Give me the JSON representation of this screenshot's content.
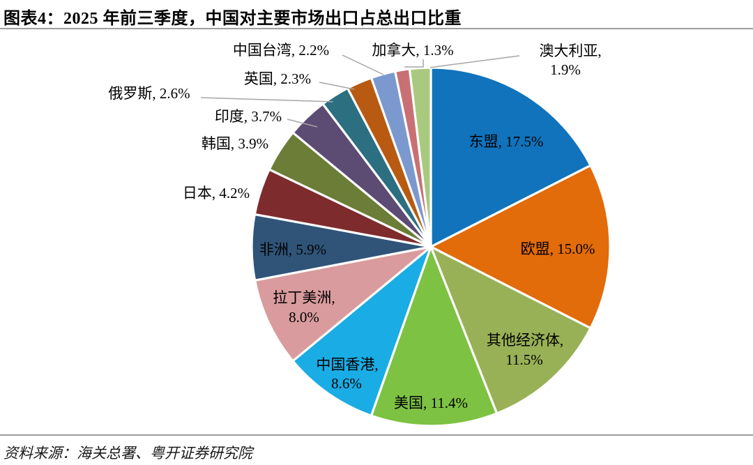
{
  "header": {
    "title": "图表4：2025 年前三季度，中国对主要市场出口占总出口比重"
  },
  "footer": {
    "source": "资料来源：海关总署、粤开证券研究院"
  },
  "colors": {
    "background": "#FFFFFF",
    "divider": "#9E9E9E",
    "leader_line": "#A6A6A6",
    "label_text": "#000000",
    "slice_border": "#FFFFFF"
  },
  "chart_data": {
    "type": "pie",
    "title": "图表4：2025 年前三季度，中国对主要市场出口占总出口比重",
    "unit": "%",
    "start_angle": "12-oclock",
    "direction": "clockwise",
    "legend_position": "none",
    "slices": [
      {
        "label": "东盟",
        "value": 17.5,
        "color": "#1073BC"
      },
      {
        "label": "欧盟",
        "value": 15.0,
        "color": "#E26B0A"
      },
      {
        "label": "其他经济体",
        "value": 11.5,
        "color": "#98B156"
      },
      {
        "label": "美国",
        "value": 11.4,
        "color": "#7DC242"
      },
      {
        "label": "中国香港",
        "value": 8.6,
        "color": "#1AACE4"
      },
      {
        "label": "拉丁美洲",
        "value": 8.0,
        "color": "#D99B9D"
      },
      {
        "label": "非洲",
        "value": 5.9,
        "color": "#2F5478"
      },
      {
        "label": "日本",
        "value": 4.2,
        "color": "#7E2B2D"
      },
      {
        "label": "韩国",
        "value": 3.9,
        "color": "#6B7D36"
      },
      {
        "label": "印度",
        "value": 3.7,
        "color": "#5C4B73"
      },
      {
        "label": "俄罗斯",
        "value": 2.6,
        "color": "#2B6F80"
      },
      {
        "label": "英国",
        "value": 2.3,
        "color": "#B85A12"
      },
      {
        "label": "中国台湾",
        "value": 2.2,
        "color": "#7B99CF"
      },
      {
        "label": "加拿大",
        "value": 1.3,
        "color": "#C97074"
      },
      {
        "label": "澳大利亚",
        "value": 1.9,
        "color": "#A9CA7E"
      }
    ]
  }
}
